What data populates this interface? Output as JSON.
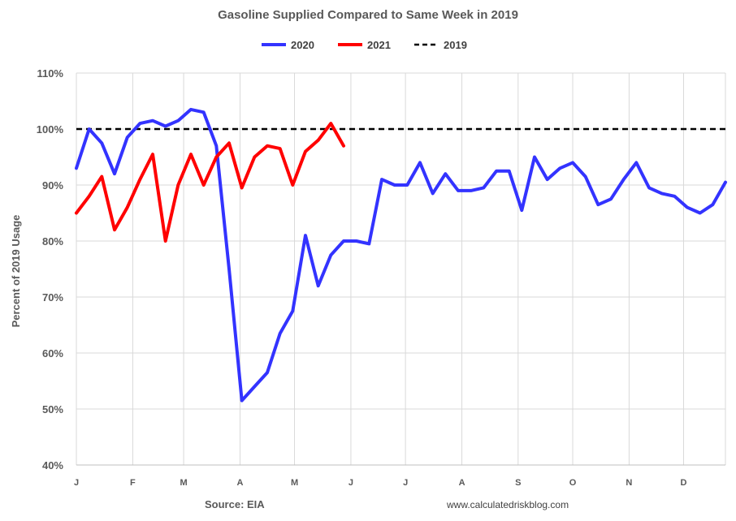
{
  "chart_data": {
    "type": "line",
    "title": "Gasoline Supplied Compared to Same Week in 2019",
    "ylabel": "Percent of 2019 Usage",
    "ylim": [
      40,
      110
    ],
    "yticks": [
      "40%",
      "50%",
      "60%",
      "70%",
      "80%",
      "90%",
      "100%",
      "110%"
    ],
    "ytick_values": [
      40,
      50,
      60,
      70,
      80,
      90,
      100,
      110
    ],
    "month_labels": [
      "J",
      "F",
      "M",
      "A",
      "M",
      "J",
      "J",
      "A",
      "S",
      "O",
      "N",
      "D"
    ],
    "x_unit": "week of year",
    "month_start_weeks": [
      1,
      5.43,
      9.43,
      13.86,
      18.14,
      22.57,
      26.86,
      31.29,
      35.71,
      40,
      44.43,
      48.71
    ],
    "xlim": [
      1,
      52
    ],
    "grid": true,
    "legend_position": "top",
    "series": [
      {
        "name": "2020",
        "color": "#3333ff",
        "style": "solid",
        "values": [
          93,
          100,
          97.5,
          92,
          98.5,
          101,
          101.5,
          100.5,
          101.5,
          103.5,
          103,
          97,
          75,
          51.5,
          54,
          56.5,
          63.5,
          67.5,
          81,
          72,
          77.5,
          80,
          80,
          79.5,
          91,
          90,
          90,
          94,
          88.5,
          92,
          89,
          89,
          89.5,
          92.5,
          92.5,
          85.5,
          95,
          91,
          93,
          94,
          91.5,
          86.5,
          87.5,
          91,
          94,
          89.5,
          88.5,
          88,
          86,
          85,
          86.5,
          90.5
        ]
      },
      {
        "name": "2021",
        "color": "#ff0000",
        "style": "solid",
        "values": [
          85,
          88,
          91.5,
          82,
          86,
          91,
          95.5,
          80,
          90,
          95.5,
          90,
          95,
          97.5,
          89.5,
          95,
          97,
          96.5,
          90,
          96,
          98,
          101,
          97
        ]
      },
      {
        "name": "2019",
        "color": "#000000",
        "style": "dashed",
        "values": [
          100,
          100
        ]
      }
    ]
  },
  "footer": {
    "source": "Source: EIA",
    "website": "www.calculatedriskblog.com"
  }
}
